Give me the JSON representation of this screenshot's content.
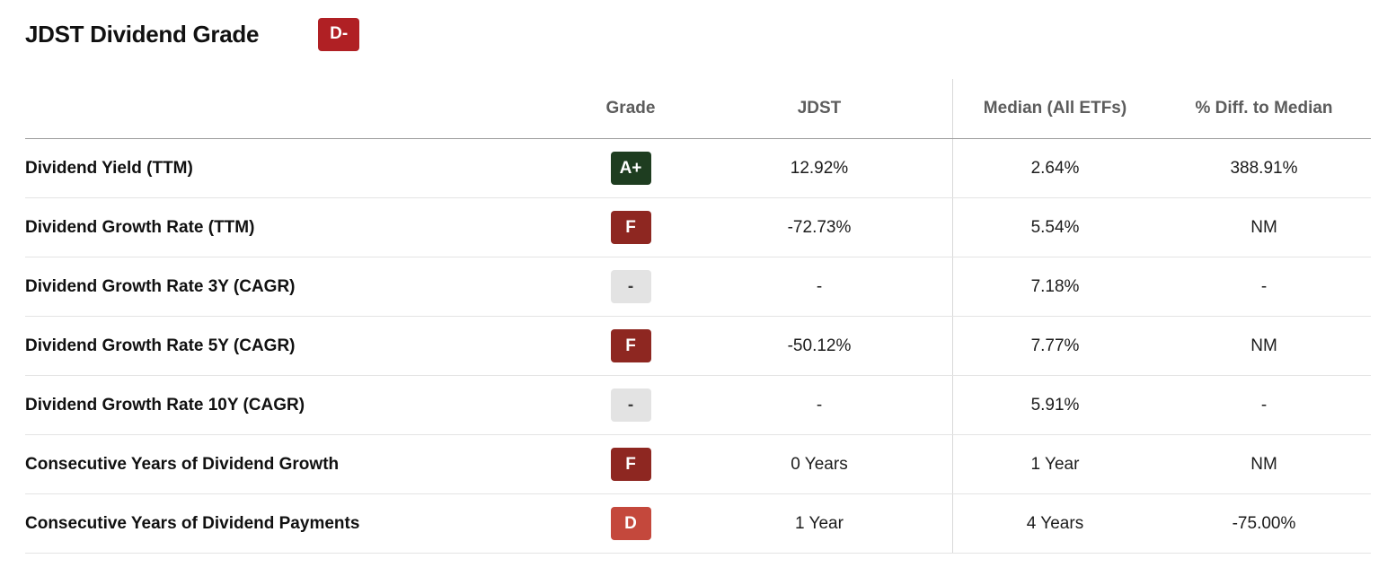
{
  "header": {
    "title": "JDST Dividend Grade",
    "overall_grade": "D-",
    "overall_grade_bg": "#b02024",
    "overall_grade_fg": "#ffffff"
  },
  "table": {
    "columns": {
      "grade": "Grade",
      "ticker": "JDST",
      "median": "Median (All ETFs)",
      "diff": "% Diff. to Median"
    },
    "grade_colors": {
      "a_plus_bg": "#1e3d20",
      "f_bg": "#8e2721",
      "d_bg": "#c4483c",
      "none_bg": "#e3e3e3",
      "light_fg": "#ffffff",
      "dark_fg": "#3f3f3f"
    },
    "rows": [
      {
        "label": "Dividend Yield (TTM)",
        "grade": "A+",
        "grade_bg": "#1e3d20",
        "grade_fg": "#ffffff",
        "ticker": "12.92%",
        "median": "2.64%",
        "diff": "388.91%"
      },
      {
        "label": "Dividend Growth Rate (TTM)",
        "grade": "F",
        "grade_bg": "#8e2721",
        "grade_fg": "#ffffff",
        "ticker": "-72.73%",
        "median": "5.54%",
        "diff": "NM"
      },
      {
        "label": "Dividend Growth Rate 3Y (CAGR)",
        "grade": "-",
        "grade_bg": "#e3e3e3",
        "grade_fg": "#3f3f3f",
        "ticker": "-",
        "median": "7.18%",
        "diff": "-"
      },
      {
        "label": "Dividend Growth Rate 5Y (CAGR)",
        "grade": "F",
        "grade_bg": "#8e2721",
        "grade_fg": "#ffffff",
        "ticker": "-50.12%",
        "median": "7.77%",
        "diff": "NM"
      },
      {
        "label": "Dividend Growth Rate 10Y (CAGR)",
        "grade": "-",
        "grade_bg": "#e3e3e3",
        "grade_fg": "#3f3f3f",
        "ticker": "-",
        "median": "5.91%",
        "diff": "-"
      },
      {
        "label": "Consecutive Years of Dividend Growth",
        "grade": "F",
        "grade_bg": "#8e2721",
        "grade_fg": "#ffffff",
        "ticker": "0 Years",
        "median": "1 Year",
        "diff": "NM"
      },
      {
        "label": "Consecutive Years of Dividend Payments",
        "grade": "D",
        "grade_bg": "#c4483c",
        "grade_fg": "#ffffff",
        "ticker": "1 Year",
        "median": "4 Years",
        "diff": "-75.00%"
      }
    ]
  }
}
